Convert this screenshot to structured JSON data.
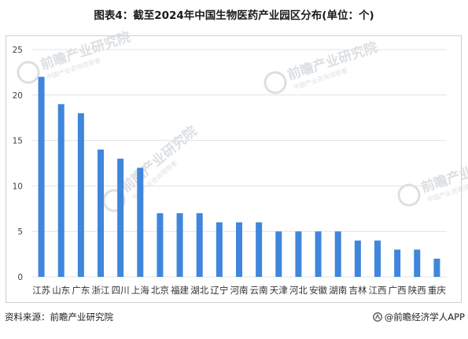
{
  "title": "图表4：截至2024年中国生物医药产业园区分布(单位：个)",
  "watermark": {
    "brand": "前瞻产业研究院",
    "tagline": "中国产业咨询领导者"
  },
  "footer": {
    "source": "资料来源：前瞻产业研究院",
    "brand": "@前瞻经济学人APP"
  },
  "colors": {
    "bar": "#3f86dc",
    "grid": "#e3e3e3",
    "axis_text": "#444444",
    "watermark": "#bfc5cc"
  },
  "chart_data": {
    "type": "bar",
    "title": "图表4：截至2024年中国生物医药产业园区分布(单位：个)",
    "categories": [
      "江苏",
      "山东",
      "广东",
      "浙江",
      "四川",
      "上海",
      "北京",
      "福建",
      "湖北",
      "辽宁",
      "河南",
      "云南",
      "天津",
      "河北",
      "安徽",
      "湖南",
      "吉林",
      "江西",
      "广西",
      "陕西",
      "重庆"
    ],
    "values": [
      22,
      19,
      18,
      14,
      13,
      12,
      7,
      7,
      7,
      6,
      6,
      6,
      5,
      5,
      5,
      5,
      4,
      4,
      3,
      3,
      2
    ],
    "xlabel": "",
    "ylabel": "",
    "ylim": [
      0,
      25
    ],
    "yticks": [
      0,
      5,
      10,
      15,
      20,
      25
    ],
    "grid": true,
    "legend": "none"
  }
}
